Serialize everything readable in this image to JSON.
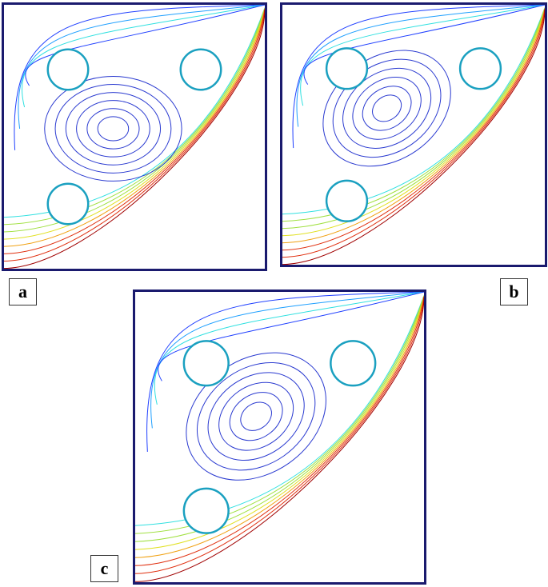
{
  "panels": [
    {
      "label": "a",
      "vortices": 1
    },
    {
      "label": "b",
      "vortices": 1
    },
    {
      "label": "c",
      "vortices": 1
    }
  ],
  "colors": {
    "frame": "#1a1a6e",
    "cylinder": "#1aa0c0",
    "vortex": "#2a3ad0",
    "jet": [
      "#2040ff",
      "#20a0ff",
      "#30e0e0",
      "#a0e040",
      "#e0e020",
      "#f0a010",
      "#e03010",
      "#a00000"
    ]
  }
}
